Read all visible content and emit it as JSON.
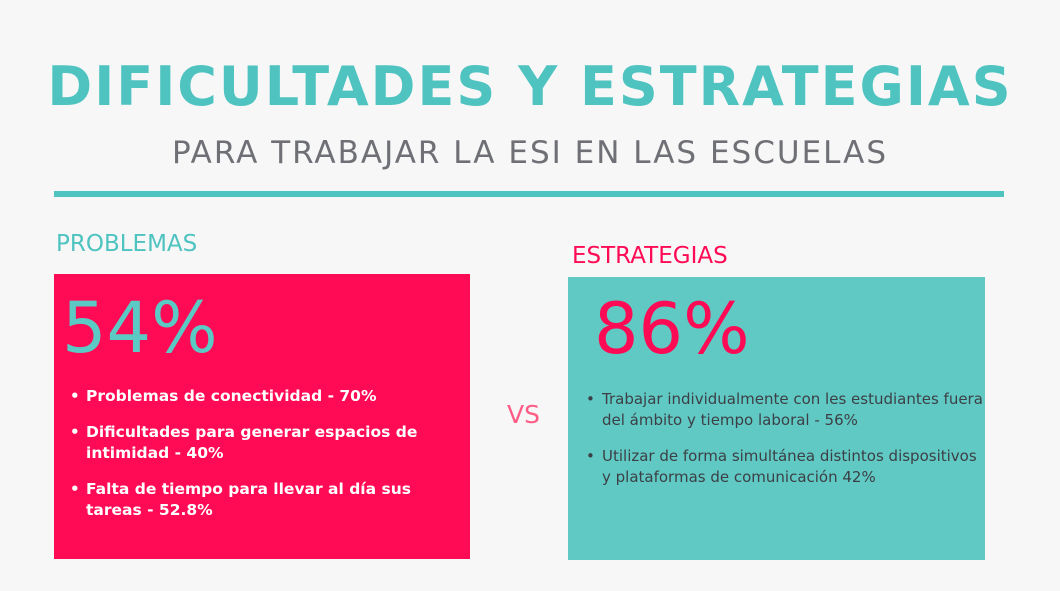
{
  "header": {
    "title": "DIFICULTADES Y ESTRATEGIAS",
    "subtitle": "PARA TRABAJAR LA ESI EN LAS ESCUELAS"
  },
  "colors": {
    "teal": "#4ec3c0",
    "pink": "#ff0a54",
    "gray_text": "#6e7075",
    "background": "#f7f7f8"
  },
  "problems": {
    "label": "PROBLEMAS",
    "percent": "54%",
    "items": [
      "Problemas de conectividad - 70%",
      "Dificultades para generar espacios de intimidad - 40%",
      "Falta de tiempo para llevar al día sus tareas - 52.8%"
    ]
  },
  "vs": "VS",
  "strategies": {
    "label": "ESTRATEGIAS",
    "percent": "86%",
    "items": [
      "Trabajar individualmente con les estudiantes fuera del ámbito y tiempo laboral - 56%",
      "Utilizar de forma simultánea distintos dispositivos y plataformas de comunicación 42%"
    ]
  }
}
